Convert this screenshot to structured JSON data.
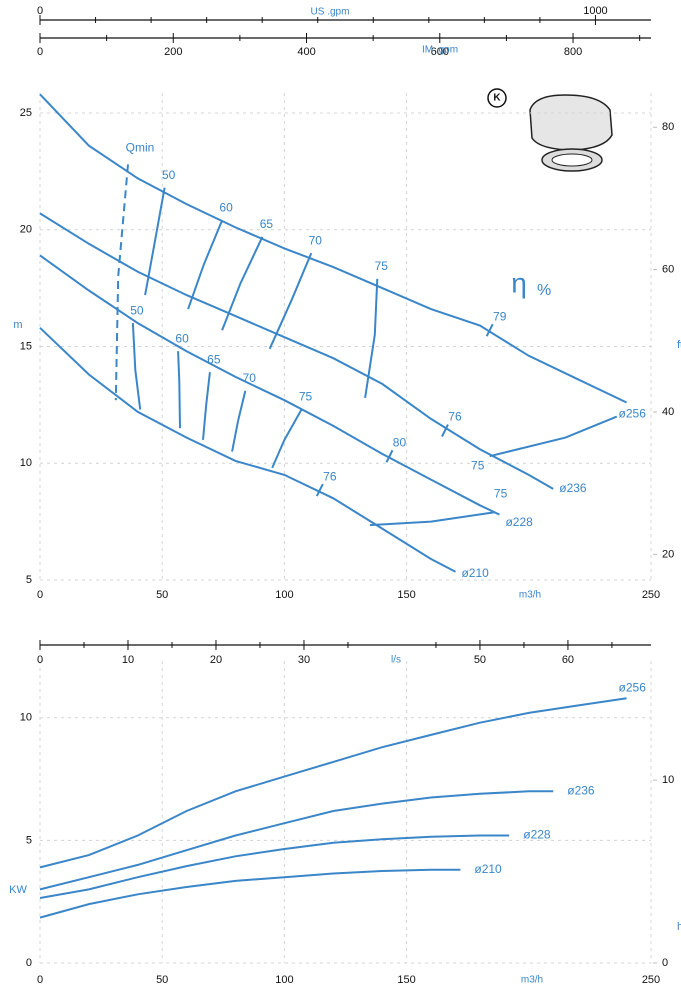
{
  "chart_data": [
    {
      "type": "line",
      "x_label": "m3/h",
      "y_label": "m",
      "y2_label": "ft",
      "efficiency_symbol": "η",
      "efficiency_unit": "%",
      "badge": "K",
      "xlim": [
        0,
        250
      ],
      "xticks": [
        0,
        50,
        100,
        150,
        250
      ],
      "ylim": [
        5,
        25
      ],
      "yticks": [
        5,
        10,
        15,
        20,
        25
      ],
      "y2lim": [
        16.4,
        82.0
      ],
      "y2ticks": [
        20,
        40,
        60,
        80
      ],
      "grid": true,
      "top_axes": [
        {
          "title": "US .gpm",
          "lim": [
            0,
            1100
          ],
          "ticks": [
            0,
            1000
          ],
          "minor_ticks": [
            100,
            200,
            300,
            400,
            500,
            600,
            700,
            800,
            900
          ]
        },
        {
          "title": "IM .gpm",
          "lim": [
            0,
            917
          ],
          "ticks": [
            0,
            200,
            400,
            600,
            800
          ],
          "minor_ticks": [
            100,
            300,
            500,
            700,
            900
          ]
        }
      ],
      "series": [
        {
          "name": "ø256",
          "color": "#3a86c8",
          "x": [
            0,
            20,
            40,
            60,
            80,
            100,
            120,
            140,
            160,
            180,
            200,
            220,
            240
          ],
          "values": [
            25.8,
            23.6,
            22.2,
            21.1,
            20.1,
            19.2,
            18.4,
            17.5,
            16.6,
            15.9,
            14.6,
            13.6,
            12.6
          ]
        },
        {
          "name": "ø236",
          "color": "#3a86c8",
          "x": [
            0,
            20,
            40,
            60,
            80,
            100,
            120,
            140,
            160,
            180,
            200,
            210
          ],
          "values": [
            20.7,
            19.4,
            18.2,
            17.2,
            16.3,
            15.4,
            14.5,
            13.4,
            11.9,
            10.6,
            9.5,
            8.9
          ]
        },
        {
          "name": "ø228",
          "color": "#3a86c8",
          "x": [
            0,
            20,
            40,
            60,
            80,
            100,
            120,
            140,
            160,
            180,
            188
          ],
          "values": [
            18.9,
            17.4,
            16.0,
            14.8,
            13.7,
            12.7,
            11.6,
            10.4,
            9.3,
            8.2,
            7.8
          ]
        },
        {
          "name": "ø210",
          "color": "#3a86c8",
          "x": [
            0,
            20,
            40,
            60,
            80,
            100,
            120,
            140,
            160,
            170
          ],
          "values": [
            15.8,
            13.8,
            12.2,
            11.1,
            10.1,
            9.5,
            8.5,
            7.2,
            5.9,
            5.35
          ]
        }
      ],
      "efficiency_curves": [
        {
          "label": "50",
          "x": [
            43,
            47,
            51
          ],
          "y": [
            17.2,
            19.5,
            21.8
          ]
        },
        {
          "label": "60",
          "x": [
            60.6,
            67,
            74.5
          ],
          "y": [
            16.6,
            18.5,
            20.4
          ]
        },
        {
          "label": "65",
          "x": [
            74.5,
            82,
            91
          ],
          "y": [
            15.7,
            17.7,
            19.7
          ]
        },
        {
          "label": "70",
          "x": [
            94,
            103,
            111
          ],
          "y": [
            14.9,
            17,
            19
          ]
        },
        {
          "label": "75",
          "x": [
            133,
            137,
            138
          ],
          "y": [
            12.8,
            15.5,
            17.9
          ]
        },
        {
          "label": "50",
          "x": [
            38,
            39,
            41
          ],
          "y": [
            16.0,
            14,
            12.3
          ]
        },
        {
          "label": "60",
          "x": [
            56.5,
            57,
            57.3
          ],
          "y": [
            14.8,
            13.5,
            11.5
          ]
        },
        {
          "label": "65",
          "x": [
            69.5,
            68,
            66.7
          ],
          "y": [
            13.9,
            12.5,
            11
          ]
        },
        {
          "label": "70",
          "x": [
            84,
            81,
            78.6
          ],
          "y": [
            13.1,
            11.8,
            10.5
          ]
        },
        {
          "label": "75",
          "x": [
            107,
            100,
            95
          ],
          "y": [
            12.3,
            11,
            9.8
          ]
        },
        {
          "label": "75",
          "x": [
            184,
            215,
            236
          ],
          "y": [
            10.3,
            11.1,
            12
          ]
        },
        {
          "label": "75",
          "x": [
            135,
            160,
            186
          ],
          "y": [
            7.35,
            7.5,
            7.9
          ]
        }
      ],
      "efficiency_marks": [
        {
          "label": "79",
          "x": 184,
          "y": 15.7
        },
        {
          "label": "76",
          "x": 165.7,
          "y": 11.4
        },
        {
          "label": "80",
          "x": 143,
          "y": 10.3
        },
        {
          "label": "76",
          "x": 114.5,
          "y": 8.85
        }
      ],
      "qmin": {
        "label": "Qmin",
        "x": [
          36,
          32,
          31
        ],
        "y": [
          22.8,
          18,
          12.7
        ]
      }
    },
    {
      "type": "line",
      "x_label": "m3/h",
      "y_label": "KW",
      "y2_label": "hp",
      "xlim": [
        0,
        250
      ],
      "xticks": [
        0,
        50,
        100,
        150,
        250
      ],
      "ylim": [
        0,
        11.5
      ],
      "yticks": [
        0,
        5,
        10
      ],
      "y2lim": [
        0,
        15.42
      ],
      "y2ticks": [
        0,
        10
      ],
      "grid": true,
      "top_axes": [
        {
          "title": "l/s",
          "lim": [
            0,
            69.44
          ],
          "ticks": [
            0,
            10,
            20,
            30,
            50,
            60
          ],
          "minor_ticks": [
            5,
            15,
            25,
            35,
            45,
            55,
            65
          ]
        }
      ],
      "series": [
        {
          "name": "ø256",
          "color": "#3a86c8",
          "x": [
            0,
            20,
            40,
            60,
            80,
            100,
            120,
            140,
            160,
            180,
            200,
            220,
            240
          ],
          "values": [
            3.9,
            4.4,
            5.2,
            6.2,
            7.0,
            7.6,
            8.2,
            8.8,
            9.3,
            9.8,
            10.2,
            10.5,
            10.8
          ]
        },
        {
          "name": "ø236",
          "color": "#3a86c8",
          "x": [
            0,
            20,
            40,
            60,
            80,
            100,
            120,
            140,
            160,
            180,
            200,
            210
          ],
          "values": [
            3.0,
            3.5,
            4.0,
            4.6,
            5.2,
            5.7,
            6.2,
            6.5,
            6.75,
            6.9,
            7.0,
            7.0
          ]
        },
        {
          "name": "ø228",
          "color": "#3a86c8",
          "x": [
            0,
            20,
            40,
            60,
            80,
            100,
            120,
            140,
            160,
            180,
            192
          ],
          "values": [
            2.65,
            3.0,
            3.5,
            3.95,
            4.35,
            4.65,
            4.9,
            5.05,
            5.15,
            5.2,
            5.2
          ]
        },
        {
          "name": "ø210",
          "color": "#3a86c8",
          "x": [
            0,
            20,
            40,
            60,
            80,
            100,
            120,
            140,
            160,
            172
          ],
          "values": [
            1.85,
            2.4,
            2.8,
            3.1,
            3.35,
            3.5,
            3.65,
            3.75,
            3.8,
            3.8
          ]
        }
      ]
    }
  ]
}
